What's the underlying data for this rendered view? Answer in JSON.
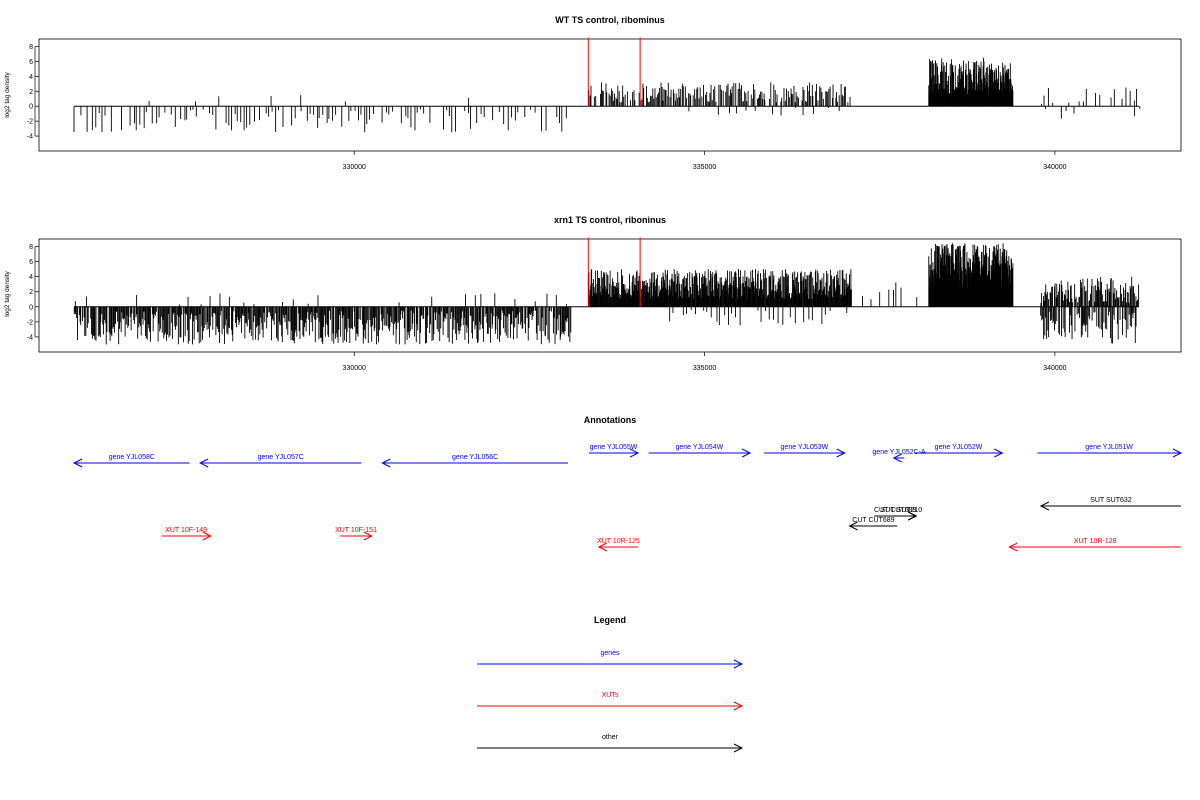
{
  "colors": {
    "genes": "#0000ff",
    "xuts": "#ff0000",
    "other": "#000000",
    "marker": "#ff0000",
    "bars": "#000000",
    "frame": "#000000"
  },
  "chart_data": [
    {
      "type": "bar",
      "title": "WT TS control, ribominus",
      "ylabel": "log2 tag density",
      "xlim": [
        325500,
        341800
      ],
      "ylim": [
        -6,
        9
      ],
      "yticks": [
        -4,
        -2,
        0,
        2,
        4,
        6,
        8
      ],
      "xticks": [
        330000,
        335000,
        340000
      ],
      "xtick_labels": [
        "330000",
        "335000",
        "340000"
      ],
      "ytick_labels": [
        "-4",
        "-2",
        "0",
        "2",
        "4",
        "6",
        "8"
      ],
      "baseline": [
        326000,
        341200
      ],
      "markers": [
        333340,
        334080
      ],
      "density_regions": [
        {
          "x0": 326000,
          "x1": 333100,
          "sign": -1,
          "min": 0.4,
          "max": 3.5,
          "step": 45,
          "occ": 0.7
        },
        {
          "x0": 327000,
          "x1": 332100,
          "sign": 1,
          "min": 0.4,
          "max": 1.8,
          "step": 600,
          "occ": 0.8
        },
        {
          "x0": 333350,
          "x1": 337100,
          "sign": 1,
          "min": 0.5,
          "max": 3.2,
          "step": 16,
          "occ": 0.8
        },
        {
          "x0": 334500,
          "x1": 337100,
          "sign": -1,
          "min": 0.2,
          "max": 1.5,
          "step": 120,
          "occ": 0.4
        },
        {
          "x0": 338200,
          "x1": 339400,
          "sign": 1,
          "min": 1.5,
          "max": 6.5,
          "step": 6,
          "occ": 1.0
        },
        {
          "x0": 339800,
          "x1": 341200,
          "sign": 1,
          "min": 0.3,
          "max": 2.5,
          "step": 55,
          "occ": 0.6
        },
        {
          "x0": 339800,
          "x1": 341200,
          "sign": -1,
          "min": 0.3,
          "max": 2.0,
          "step": 70,
          "occ": 0.5
        }
      ]
    },
    {
      "type": "bar",
      "title": "xrn1 TS control, riboninus",
      "ylabel": "log2 tag density",
      "xlim": [
        325500,
        341800
      ],
      "ylim": [
        -6,
        9
      ],
      "yticks": [
        -4,
        -2,
        0,
        2,
        4,
        6,
        8
      ],
      "xticks": [
        330000,
        335000,
        340000
      ],
      "xtick_labels": [
        "330000",
        "335000",
        "340000"
      ],
      "ytick_labels": [
        "-4",
        "-2",
        "0",
        "2",
        "4",
        "6",
        "8"
      ],
      "baseline": [
        326000,
        341200
      ],
      "markers": [
        333340,
        334080
      ],
      "density_regions": [
        {
          "x0": 326000,
          "x1": 333100,
          "sign": -1,
          "min": 0.5,
          "max": 5.0,
          "step": 12,
          "occ": 0.9
        },
        {
          "x0": 326000,
          "x1": 333100,
          "sign": 1,
          "min": 0.3,
          "max": 1.8,
          "step": 150,
          "occ": 0.5
        },
        {
          "x0": 333350,
          "x1": 337100,
          "sign": 1,
          "min": 1.0,
          "max": 5.0,
          "step": 8,
          "occ": 1.0
        },
        {
          "x0": 334500,
          "x1": 337100,
          "sign": -1,
          "min": 0.3,
          "max": 2.5,
          "step": 60,
          "occ": 0.6
        },
        {
          "x0": 337200,
          "x1": 338100,
          "sign": 1,
          "min": 0.5,
          "max": 3.5,
          "step": 60,
          "occ": 0.5
        },
        {
          "x0": 338200,
          "x1": 339400,
          "sign": 1,
          "min": 2.0,
          "max": 8.5,
          "step": 4,
          "occ": 1.0
        },
        {
          "x0": 339800,
          "x1": 341200,
          "sign": 1,
          "min": 0.5,
          "max": 4.0,
          "step": 12,
          "occ": 0.9
        },
        {
          "x0": 339800,
          "x1": 341200,
          "sign": -1,
          "min": 0.5,
          "max": 5.0,
          "step": 14,
          "occ": 0.8
        }
      ]
    }
  ],
  "annotations": {
    "title": "Annotations",
    "genes": [
      {
        "label": "gene YJL058C",
        "start": 326000,
        "end": 327650,
        "strand": "-",
        "row": 2
      },
      {
        "label": "gene YJL057C",
        "start": 327800,
        "end": 330100,
        "strand": "-",
        "row": 2
      },
      {
        "label": "gene YJL056C",
        "start": 330400,
        "end": 333050,
        "strand": "-",
        "row": 2
      },
      {
        "label": "gene YJL055W",
        "start": 333350,
        "end": 334050,
        "strand": "+",
        "row": 0
      },
      {
        "label": "gene YJL054W",
        "start": 334200,
        "end": 335650,
        "strand": "+",
        "row": 0
      },
      {
        "label": "gene YJL053W",
        "start": 335850,
        "end": 337000,
        "strand": "+",
        "row": 0
      },
      {
        "label": "gene YJL052C-A",
        "start": 337700,
        "end": 337850,
        "strand": "-",
        "row": 1
      },
      {
        "label": "gene YJL052W",
        "start": 338000,
        "end": 339250,
        "strand": "+",
        "row": 0
      },
      {
        "label": "gene YJL051W",
        "start": 339750,
        "end": 341800,
        "strand": "+",
        "row": 0
      }
    ],
    "xuts": [
      {
        "label": "XUT 10F-149",
        "start": 327250,
        "end": 327950,
        "strand": "+",
        "row": 0
      },
      {
        "label": "XUT 10F-151",
        "start": 329800,
        "end": 330250,
        "strand": "+",
        "row": 0
      },
      {
        "label": "XUT 10R-125",
        "start": 333490,
        "end": 334050,
        "strand": "-",
        "row": 1
      },
      {
        "label": "XUT 10R-128",
        "start": 339350,
        "end": 341800,
        "strand": "-",
        "row": 1
      }
    ],
    "other": [
      {
        "label": "SUT SUT632",
        "start": 339800,
        "end": 341800,
        "strand": "-",
        "row": 0
      },
      {
        "label": "CUT CUT689",
        "start": 337070,
        "end": 337750,
        "strand": "-",
        "row": 2
      },
      {
        "label": "CUT CUT689",
        "start": 337420,
        "end": 338020,
        "strand": "+",
        "row": 1
      },
      {
        "label": "SUT SUT210",
        "start": 337600,
        "end": 338020,
        "strand": "+",
        "row": 1
      }
    ]
  },
  "legend": {
    "title": "Legend",
    "items": [
      {
        "label": "genes",
        "color": "#0000ff"
      },
      {
        "label": "XUTs",
        "color": "#ff0000"
      },
      {
        "label": "other",
        "color": "#000000"
      }
    ]
  }
}
